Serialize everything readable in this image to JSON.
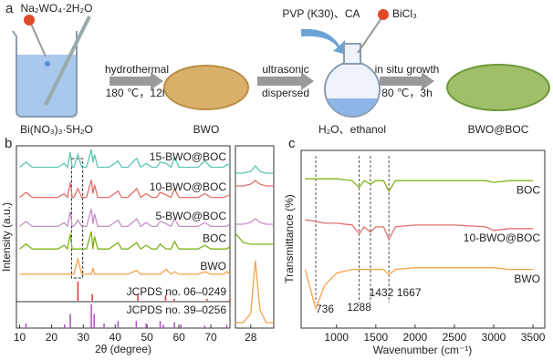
{
  "scheme": {
    "panel": "a",
    "reagent": "Na₂WO₄·2H₂O",
    "precursor": "Bi(NO₃)₃·5H₂O",
    "additives": "PVP (K30)、CA",
    "bismuth_source": "BiCl₃",
    "steps": [
      {
        "method": "hydrothermal",
        "condition": "180 ℃，12h"
      },
      {
        "method": "ultrasonic",
        "condition": "dispersed"
      },
      {
        "method": "in situ growth",
        "condition": "80 ℃，3h"
      }
    ],
    "products": [
      "BWO",
      "H₂O、ethanol",
      "BWO@BOC"
    ]
  },
  "chart_data": [
    {
      "type": "line",
      "panel": "b",
      "x_label": "2θ (degree)",
      "y_label": "Intensity (a.u.)",
      "xlim": [
        9,
        76
      ],
      "xticks": [
        10,
        20,
        30,
        40,
        50,
        60,
        70
      ],
      "ylim": [
        0,
        105
      ],
      "highlight": [
        26.3,
        29.8
      ],
      "x": [
        10,
        12,
        14,
        16,
        18,
        20,
        22,
        24,
        25,
        25.9,
        26.5,
        27,
        28.3,
        29.5,
        31,
        32.5,
        33,
        33.5,
        34.5,
        36,
        38,
        40.9,
        42,
        44,
        46.7,
        48,
        49.7,
        51.5,
        53,
        54.1,
        56,
        57.5,
        58.6,
        60,
        62,
        64,
        66,
        68.1,
        70,
        72,
        74,
        75,
        76
      ],
      "series": [
        {
          "name": "15-BWO@BOC",
          "color": "#5cc5b5",
          "values": [
            88,
            92,
            88,
            88,
            88,
            88,
            88,
            91,
            88,
            100,
            88,
            88,
            98,
            88,
            88,
            102,
            92,
            98,
            88,
            88,
            88,
            93,
            88,
            88,
            95,
            88,
            91,
            88,
            88,
            92,
            91,
            88,
            96,
            88,
            88,
            88,
            88,
            93,
            88,
            88,
            88,
            90,
            90
          ]
        },
        {
          "name": "10-BWO@BOC",
          "color": "#e0706e",
          "values": [
            64,
            68,
            64,
            64,
            64,
            64,
            64,
            67,
            64,
            76,
            64,
            64,
            71,
            64,
            64,
            78,
            67,
            74,
            64,
            64,
            64,
            69,
            64,
            64,
            71,
            64,
            67,
            64,
            64,
            68,
            66,
            64,
            71,
            64,
            64,
            64,
            64,
            67,
            64,
            64,
            64,
            65,
            66
          ]
        },
        {
          "name": "5-BWO@BOC",
          "color": "#c58fc6",
          "values": [
            41,
            45,
            41,
            41,
            41,
            41,
            41,
            44,
            41,
            53,
            41,
            41,
            46,
            41,
            41,
            55,
            43,
            51,
            41,
            41,
            41,
            46,
            41,
            41,
            47,
            41,
            44,
            41,
            41,
            45,
            43,
            41,
            47,
            41,
            41,
            41,
            41,
            44,
            41,
            41,
            41,
            41,
            43
          ]
        },
        {
          "name": "BOC",
          "color": "#7fb21a",
          "values": [
            23,
            27,
            23,
            23,
            23,
            23,
            23,
            26,
            23,
            35,
            23,
            23,
            23,
            23,
            23,
            37,
            23,
            33,
            23,
            23,
            23,
            28,
            23,
            23,
            28,
            23,
            26,
            23,
            23,
            27,
            23,
            23,
            29,
            23,
            23,
            23,
            23,
            26,
            23,
            23,
            23,
            23,
            25
          ]
        },
        {
          "name": "BWO",
          "color": "#f5a04a",
          "values": [
            3,
            3,
            3,
            3,
            3,
            3,
            3,
            3,
            3,
            3,
            3,
            3,
            15,
            3,
            3,
            3,
            8,
            3,
            3,
            3,
            3,
            3,
            3,
            3,
            6,
            3,
            3,
            3,
            3,
            3,
            7,
            3,
            5,
            3,
            3,
            3,
            3,
            5,
            3,
            3,
            3,
            5,
            3
          ]
        }
      ]
    },
    {
      "type": "stick",
      "xlim": [
        9,
        76
      ],
      "ylim": [
        0,
        100
      ],
      "series": [
        {
          "name": "JCPDS no. 06–0249",
          "color": "#e03030",
          "x": [
            28.3,
            32.8,
            47.1,
            55.8,
            58.5,
            68.8,
            76
          ],
          "values": [
            100,
            35,
            30,
            30,
            10,
            10,
            10
          ]
        }
      ]
    },
    {
      "type": "stick",
      "xlim": [
        9,
        76
      ],
      "ylim": [
        0,
        100
      ],
      "series": [
        {
          "name": "JCPDS no. 39–0256",
          "color": "#b050c0",
          "x": [
            12,
            24.1,
            25.9,
            32.5,
            33.4,
            36.5,
            40.9,
            46.6,
            49.7,
            54.1,
            55.1,
            58.6,
            60.6,
            68.1,
            75
          ],
          "values": [
            20,
            15,
            60,
            100,
            60,
            20,
            30,
            30,
            20,
            30,
            15,
            25,
            15,
            10,
            15
          ]
        }
      ]
    },
    {
      "type": "line",
      "xlim": [
        27,
        29.5
      ],
      "xticks": [
        28
      ],
      "ylim": [
        0,
        100
      ],
      "x": [
        27,
        27.5,
        28,
        28.3,
        28.6,
        29,
        29.5
      ],
      "series": [
        {
          "color": "#5cc5b5",
          "values": [
            85,
            85,
            86,
            89,
            86,
            85,
            85
          ]
        },
        {
          "color": "#e0706e",
          "values": [
            78,
            78,
            79,
            81,
            79,
            78,
            78
          ]
        },
        {
          "color": "#c58fc6",
          "values": [
            57,
            57,
            58,
            60,
            58,
            57,
            57
          ]
        },
        {
          "color": "#7fb21a",
          "values": [
            52,
            47,
            46,
            46,
            46,
            46,
            46
          ]
        },
        {
          "color": "#f5a04a",
          "values": [
            3,
            3,
            8,
            37,
            10,
            3,
            3
          ]
        }
      ]
    },
    {
      "type": "line",
      "panel": "c",
      "x_label": "Wavenumber (cm⁻¹)",
      "y_label": "Transmittance (%)",
      "xlim": [
        550,
        3650
      ],
      "xticks": [
        1000,
        1500,
        2000,
        2500,
        3000,
        3500
      ],
      "ylim": [
        0,
        100
      ],
      "marker_lines": [
        736,
        1288,
        1432,
        1667
      ],
      "x": [
        600,
        736,
        850,
        1000,
        1200,
        1288,
        1350,
        1432,
        1500,
        1600,
        1667,
        1750,
        2000,
        2500,
        2900,
        3000,
        3200,
        3500
      ],
      "series": [
        {
          "name": "BOC",
          "color": "#7fb21a",
          "values": [
            84,
            84,
            84,
            84,
            83,
            79,
            83,
            81,
            83,
            83,
            77,
            83,
            83,
            83,
            83,
            82,
            83,
            83
          ]
        },
        {
          "name": "10-BWO@BOC",
          "color": "#e0706e",
          "values": [
            61,
            60,
            59,
            59,
            58,
            53,
            57,
            54,
            57,
            57,
            50,
            57,
            58,
            58,
            57,
            55,
            56,
            56
          ]
        },
        {
          "name": "BWO",
          "color": "#f5a04a",
          "values": [
            33,
            11,
            24,
            31,
            33,
            33,
            33,
            33,
            33,
            33,
            30,
            33,
            34,
            34,
            34,
            34,
            33,
            33
          ]
        }
      ]
    }
  ]
}
